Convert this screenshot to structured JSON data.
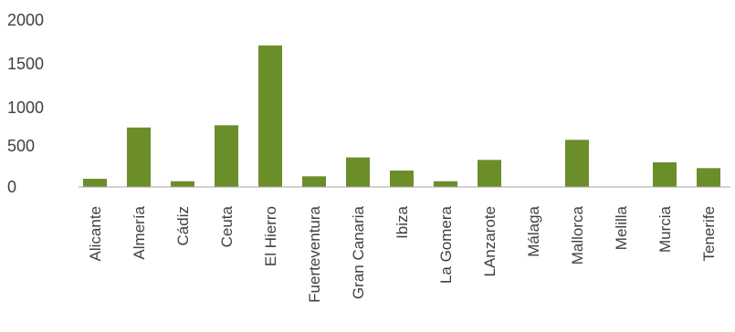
{
  "chart_data": {
    "type": "bar",
    "categories": [
      "Alicante",
      "Almería",
      "Cádiz",
      "Ceuta",
      "El Hierro",
      "Fuerteventura",
      "Gran Canaria",
      "Ibiza",
      "La Gomera",
      "LAnzarote",
      "Málaga",
      "Mallorca",
      "Melilla",
      "Murcia",
      "Tenerife"
    ],
    "series": [
      {
        "values": [
          100,
          740,
          70,
          770,
          1710,
          130,
          360,
          200,
          70,
          330,
          0,
          580,
          0,
          300,
          230
        ]
      }
    ],
    "yticks": [
      0,
      500,
      1000,
      1500,
      2000
    ],
    "ytick_labels": [
      "0",
      "500",
      "1000",
      "1500",
      "2000"
    ],
    "bar_color": "#6b8e2a",
    "axis_color": "#a6a6a6",
    "grid": false,
    "legend": "none"
  }
}
